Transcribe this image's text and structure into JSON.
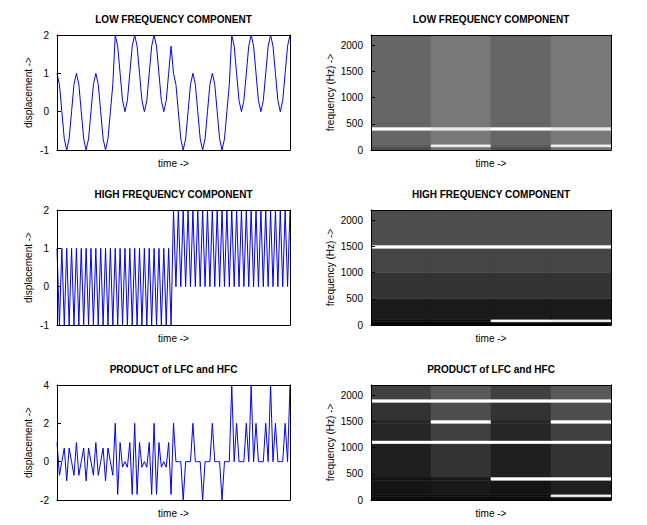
{
  "chart_data": [
    {
      "type": "line",
      "title": "LOW FREQUENCY COMPONENT",
      "x_label": "time ->",
      "y_label": "displacement ->",
      "x": [
        0,
        1,
        2,
        3,
        4,
        5,
        6,
        7,
        8,
        9,
        10,
        11,
        12,
        13,
        14,
        15,
        16,
        17,
        18,
        19,
        20,
        21,
        22,
        23,
        24,
        25,
        26,
        27,
        28,
        29,
        30,
        31,
        32,
        33,
        34,
        35,
        36,
        37,
        38,
        39,
        40,
        41,
        42,
        43,
        44,
        45,
        46,
        47,
        48,
        49,
        50,
        51,
        52,
        53,
        54,
        55,
        56,
        57,
        58,
        59,
        60,
        61,
        62,
        63,
        64,
        65,
        66,
        67,
        68,
        69,
        70,
        71,
        72,
        73,
        74,
        75,
        76,
        77,
        78,
        79,
        80,
        81,
        82,
        83,
        84,
        85,
        86,
        87,
        88,
        89,
        90,
        91,
        92,
        93,
        94,
        95,
        96
      ],
      "series": [
        {
          "color": "#0000ff",
          "values": [
            1,
            0.71,
            0,
            -0.71,
            -1,
            -0.71,
            0,
            0.71,
            1,
            0.71,
            0,
            -0.71,
            -1,
            -0.71,
            0,
            0.71,
            1,
            0.71,
            0,
            -0.71,
            -1,
            -0.71,
            0,
            0.71,
            2,
            1.71,
            1,
            0.29,
            0,
            0.29,
            1,
            1.71,
            2,
            1.71,
            1,
            0.29,
            0,
            0.29,
            1,
            1.71,
            2,
            1.71,
            1,
            0.29,
            0,
            0.29,
            1,
            1.71,
            1,
            0.71,
            0,
            -0.71,
            -1,
            -0.71,
            0,
            0.71,
            1,
            0.71,
            0,
            -0.71,
            -1,
            -0.71,
            0,
            0.71,
            1,
            0.71,
            0,
            -0.71,
            -1,
            -0.71,
            0,
            0.71,
            2,
            1.71,
            1,
            0.29,
            0,
            0.29,
            1,
            1.71,
            2,
            1.71,
            1,
            0.29,
            0,
            0.29,
            1,
            1.71,
            2,
            1.71,
            1,
            0.29,
            0,
            0.29,
            1,
            1.71,
            2
          ]
        }
      ],
      "xlim": [
        0,
        96
      ],
      "ylim": [
        -1,
        2
      ],
      "yticks": [
        -1,
        0,
        1,
        2
      ],
      "tick_labels": "y",
      "grid": false
    },
    {
      "type": "heatmap",
      "title": "LOW FREQUENCY COMPONENT",
      "x_label": "time ->",
      "y_label": "frequency (Hz) ->",
      "x_edges": [
        0,
        24,
        48,
        72,
        96
      ],
      "y_edges": [
        0,
        60,
        110,
        380,
        440,
        2200
      ],
      "z": [
        [
          0.3,
          0.45,
          0.3,
          0.45
        ],
        [
          0.35,
          0.95,
          0.35,
          0.95
        ],
        [
          0.4,
          0.47,
          0.4,
          0.47
        ],
        [
          1,
          0.92,
          1,
          0.92
        ],
        [
          0.4,
          0.47,
          0.4,
          0.47
        ]
      ],
      "zlim": [
        0,
        1
      ],
      "xlim": [
        0,
        96
      ],
      "ylim": [
        0,
        2200
      ],
      "yticks": [
        0,
        500,
        1000,
        1500,
        2000
      ],
      "tick_labels": "y"
    },
    {
      "type": "line",
      "title": "HIGH FREQUENCY COMPONENT",
      "x_label": "time ->",
      "y_label": "displacement ->",
      "x": [
        0,
        1,
        2,
        3,
        4,
        5,
        6,
        7,
        8,
        9,
        10,
        11,
        12,
        13,
        14,
        15,
        16,
        17,
        18,
        19,
        20,
        21,
        22,
        23,
        24,
        25,
        26,
        27,
        28,
        29,
        30,
        31,
        32,
        33,
        34,
        35,
        36,
        37,
        38,
        39,
        40,
        41,
        42,
        43,
        44,
        45,
        46,
        47,
        48,
        49,
        50,
        51,
        52,
        53,
        54,
        55,
        56,
        57,
        58,
        59,
        60,
        61,
        62,
        63,
        64,
        65,
        66,
        67,
        68,
        69,
        70,
        71,
        72,
        73,
        74,
        75,
        76,
        77,
        78,
        79,
        80,
        81,
        82,
        83,
        84,
        85,
        86,
        87,
        88,
        89,
        90,
        91,
        92,
        93,
        94,
        95,
        96
      ],
      "series": [
        {
          "color": "#0000ff",
          "values": [
            1,
            -1,
            1,
            -1,
            1,
            -1,
            1,
            -1,
            1,
            -1,
            1,
            -1,
            1,
            -1,
            1,
            -1,
            1,
            -1,
            1,
            -1,
            1,
            -1,
            1,
            -1,
            1,
            -1,
            1,
            -1,
            1,
            -1,
            1,
            -1,
            1,
            -1,
            1,
            -1,
            1,
            -1,
            1,
            -1,
            1,
            -1,
            1,
            -1,
            1,
            -1,
            1,
            -1,
            2,
            0,
            2,
            0,
            2,
            0,
            2,
            0,
            2,
            0,
            2,
            0,
            2,
            0,
            2,
            0,
            2,
            0,
            2,
            0,
            2,
            0,
            2,
            0,
            2,
            0,
            2,
            0,
            2,
            0,
            2,
            0,
            2,
            0,
            2,
            0,
            2,
            0,
            2,
            0,
            2,
            0,
            2,
            0,
            2,
            0,
            2,
            0,
            2
          ]
        }
      ],
      "xlim": [
        0,
        96
      ],
      "ylim": [
        -1,
        2
      ],
      "yticks": [
        -1,
        0,
        1,
        2
      ],
      "tick_labels": "y",
      "grid": false
    },
    {
      "type": "heatmap",
      "title": "HIGH FREQUENCY COMPONENT",
      "x_label": "time ->",
      "y_label": "frequency (Hz) ->",
      "x_edges": [
        0,
        24,
        48,
        72,
        96
      ],
      "y_edges": [
        0,
        60,
        110,
        500,
        1000,
        1470,
        1530,
        2200
      ],
      "z": [
        [
          0.02,
          0.02,
          0.02,
          0.02
        ],
        [
          0.05,
          0.05,
          1,
          0.95
        ],
        [
          0.1,
          0.1,
          0.1,
          0.1
        ],
        [
          0.2,
          0.2,
          0.2,
          0.2
        ],
        [
          0.27,
          0.27,
          0.27,
          0.27
        ],
        [
          1,
          1,
          1,
          1
        ],
        [
          0.3,
          0.3,
          0.3,
          0.3
        ]
      ],
      "zlim": [
        0,
        1
      ],
      "xlim": [
        0,
        96
      ],
      "ylim": [
        0,
        2200
      ],
      "yticks": [
        0,
        500,
        1000,
        1500,
        2000
      ],
      "tick_labels": "y"
    },
    {
      "type": "line",
      "title": "PRODUCT of LFC and HFC",
      "x_label": "time ->",
      "y_label": "displacement ->",
      "x": [
        0,
        1,
        2,
        3,
        4,
        5,
        6,
        7,
        8,
        9,
        10,
        11,
        12,
        13,
        14,
        15,
        16,
        17,
        18,
        19,
        20,
        21,
        22,
        23,
        24,
        25,
        26,
        27,
        28,
        29,
        30,
        31,
        32,
        33,
        34,
        35,
        36,
        37,
        38,
        39,
        40,
        41,
        42,
        43,
        44,
        45,
        46,
        47,
        48,
        49,
        50,
        51,
        52,
        53,
        54,
        55,
        56,
        57,
        58,
        59,
        60,
        61,
        62,
        63,
        64,
        65,
        66,
        67,
        68,
        69,
        70,
        71,
        72,
        73,
        74,
        75,
        76,
        77,
        78,
        79,
        80,
        81,
        82,
        83,
        84,
        85,
        86,
        87,
        88,
        89,
        90,
        91,
        92,
        93,
        94,
        95,
        96
      ],
      "series": [
        {
          "color": "#0000ff",
          "values": [
            1,
            -0.71,
            0,
            0.71,
            -1,
            0.71,
            0,
            -0.71,
            1,
            -0.71,
            0,
            0.71,
            -1,
            0.71,
            0,
            -0.71,
            1,
            -0.71,
            0,
            0.71,
            -1,
            0.71,
            0,
            -0.71,
            2,
            -1.71,
            1,
            -0.29,
            0,
            -0.29,
            1,
            -1.71,
            2,
            -1.71,
            1,
            -0.29,
            0,
            -0.29,
            1,
            -1.71,
            2,
            -1.71,
            1,
            -0.29,
            0,
            -0.29,
            1,
            -1.71,
            2,
            0,
            0,
            0,
            -2,
            0,
            0,
            0,
            2,
            0,
            0,
            0,
            -2,
            0,
            0,
            0,
            2,
            0,
            0,
            0,
            -2,
            0,
            0,
            0,
            4,
            0,
            2,
            0,
            0,
            0,
            2,
            0,
            4,
            0,
            2,
            0,
            0,
            0,
            2,
            0,
            4,
            0,
            2,
            0,
            0,
            0,
            2,
            0,
            4
          ]
        }
      ],
      "xlim": [
        0,
        96
      ],
      "ylim": [
        -2,
        4
      ],
      "yticks": [
        -2,
        0,
        2,
        4
      ],
      "tick_labels": "y",
      "grid": false
    },
    {
      "type": "heatmap",
      "title": "PRODUCT of LFC and HFC",
      "x_label": "time ->",
      "y_label": "frequency (Hz) ->",
      "x_edges": [
        0,
        24,
        48,
        72,
        96
      ],
      "y_edges": [
        0,
        60,
        110,
        380,
        440,
        1080,
        1140,
        1470,
        1530,
        1870,
        1930,
        2200
      ],
      "z": [
        [
          0.05,
          0.05,
          0.05,
          0.05
        ],
        [
          0.05,
          0.05,
          0.05,
          0.95
        ],
        [
          0.08,
          0.1,
          0.08,
          0.12
        ],
        [
          0.08,
          0.1,
          1,
          1
        ],
        [
          0.12,
          0.2,
          0.12,
          0.2
        ],
        [
          1,
          1,
          1,
          1
        ],
        [
          0.15,
          0.25,
          0.15,
          0.25
        ],
        [
          0.15,
          1,
          0.15,
          1
        ],
        [
          0.2,
          0.3,
          0.2,
          0.3
        ],
        [
          1,
          1,
          1,
          1
        ],
        [
          0.25,
          0.35,
          0.25,
          0.35
        ]
      ],
      "zlim": [
        0,
        1
      ],
      "xlim": [
        0,
        96
      ],
      "ylim": [
        0,
        2200
      ],
      "yticks": [
        0,
        500,
        1000,
        1500,
        2000
      ],
      "tick_labels": "y"
    }
  ]
}
